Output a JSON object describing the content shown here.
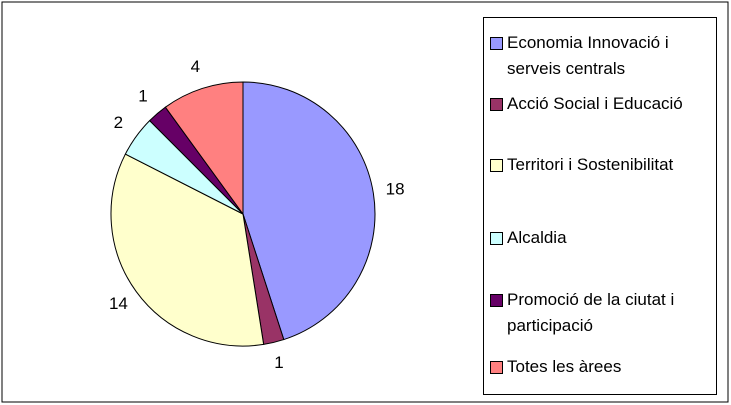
{
  "chart_data": {
    "type": "pie",
    "categories": [
      "Economia Innovació i serveis centrals",
      "Acció Social i Educació",
      "Territori i Sostenibilitat",
      "Alcaldia",
      "Promoció de la ciutat i participació",
      "Totes les àrees"
    ],
    "values": [
      18,
      1,
      14,
      2,
      1,
      4
    ],
    "colors": [
      "#9999ff",
      "#993366",
      "#ffffcc",
      "#ccffff",
      "#660066",
      "#ff8080"
    ],
    "legend": "right"
  }
}
